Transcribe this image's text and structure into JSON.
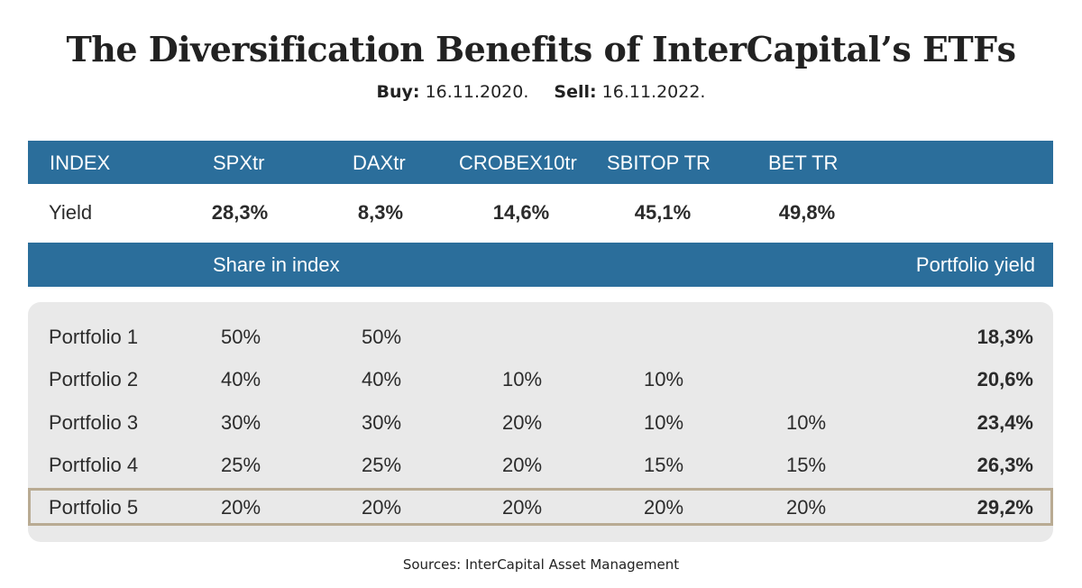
{
  "title": "The Diversification Benefits of InterCapital’s ETFs",
  "subtitle": {
    "buy_label": "Buy:",
    "buy_date": "16.11.2020.",
    "sell_label": "Sell:",
    "sell_date": "16.11.2022."
  },
  "header": {
    "index_label": "INDEX",
    "columns": [
      "SPXtr",
      "DAXtr",
      "CROBEX10tr",
      "SBITOP TR",
      "BET TR"
    ]
  },
  "yield_row": {
    "label": "Yield",
    "values": [
      "28,3%",
      "8,3%",
      "14,6%",
      "45,1%",
      "49,8%"
    ]
  },
  "section": {
    "share_label": "Share in index",
    "portfolio_yield_label": "Portfolio yield"
  },
  "portfolios": [
    {
      "name": "Portfolio 1",
      "shares": [
        "50%",
        "50%",
        "",
        "",
        ""
      ],
      "yield": "18,3%"
    },
    {
      "name": "Portfolio 2",
      "shares": [
        "40%",
        "40%",
        "10%",
        "10%",
        ""
      ],
      "yield": "20,6%"
    },
    {
      "name": "Portfolio 3",
      "shares": [
        "30%",
        "30%",
        "20%",
        "10%",
        "10%"
      ],
      "yield": "23,4%"
    },
    {
      "name": "Portfolio 4",
      "shares": [
        "25%",
        "25%",
        "20%",
        "15%",
        "15%"
      ],
      "yield": "26,3%"
    },
    {
      "name": "Portfolio 5",
      "shares": [
        "20%",
        "20%",
        "20%",
        "20%",
        "20%"
      ],
      "yield": "29,2%"
    }
  ],
  "highlighted_portfolio": "Portfolio 5",
  "source": "Sources: InterCapital Asset Management",
  "colors": {
    "header_band": "#2b6e9b",
    "panel_background": "#e9e9e9",
    "highlight_border": "#b9ab93"
  }
}
